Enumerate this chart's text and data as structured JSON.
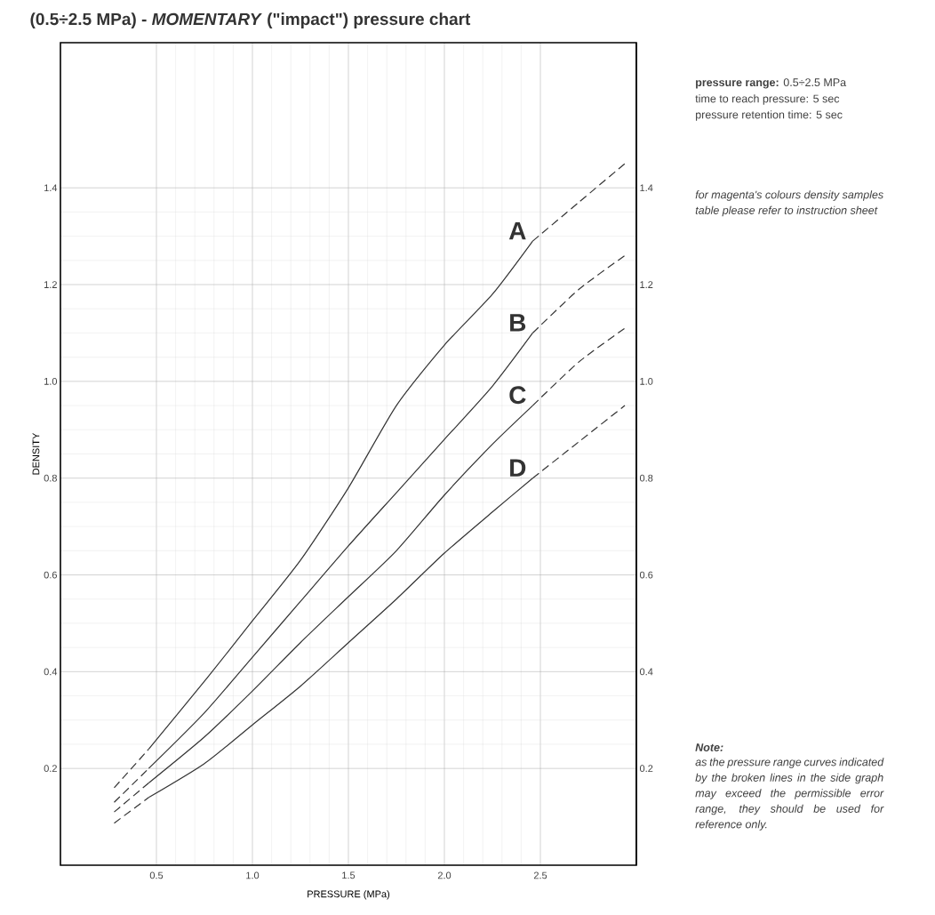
{
  "chart_data": {
    "type": "line",
    "title": "(0.5÷2.5 MPa) - *MOMENTARY* (\"impact\") pressure chart",
    "xlabel": "PRESSURE (MPa)",
    "ylabel": "DENSITY",
    "xlim": [
      0,
      3.0
    ],
    "ylim": [
      0,
      1.7
    ],
    "xticks": [
      0.5,
      {
        "value": 1.0,
        "label": "1.0"
      },
      1.5,
      {
        "value": 2.0,
        "label": "2.0"
      },
      2.5
    ],
    "yticks": [
      0.2,
      0.4,
      0.6,
      0.8,
      {
        "value": 1.0,
        "label": "1.0"
      },
      1.2,
      1.4
    ],
    "y2lim": [
      0,
      1.7
    ],
    "y2ticks": [
      0.2,
      0.4,
      0.6,
      0.8,
      {
        "value": 1.0,
        "label": "1.0"
      },
      1.2,
      1.4
    ],
    "grid": true,
    "series": [
      {
        "name": "A",
        "color": "#333333",
        "line_style": "solid",
        "x": [
          0.46,
          0.75,
          1.0,
          1.25,
          1.5,
          1.75,
          2.0,
          2.25,
          2.46
        ],
        "values": [
          0.24,
          0.38,
          0.505,
          0.63,
          0.78,
          0.95,
          1.075,
          1.18,
          1.29
        ]
      },
      {
        "color": "#333333",
        "line_style": "dashed",
        "x": [
          0.28,
          0.46
        ],
        "values": [
          0.16,
          0.24
        ]
      },
      {
        "color": "#333333",
        "line_style": "dashed",
        "x": [
          2.46,
          2.7,
          2.94
        ],
        "values": [
          1.29,
          1.37,
          1.45
        ]
      },
      {
        "name": "B",
        "color": "#333333",
        "line_style": "solid",
        "x": [
          0.46,
          0.75,
          1.0,
          1.25,
          1.5,
          1.75,
          2.0,
          2.25,
          2.46
        ],
        "values": [
          0.2,
          0.315,
          0.43,
          0.545,
          0.66,
          0.77,
          0.88,
          0.99,
          1.1
        ]
      },
      {
        "color": "#333333",
        "line_style": "dashed",
        "x": [
          0.28,
          0.46
        ],
        "values": [
          0.13,
          0.2
        ]
      },
      {
        "color": "#333333",
        "line_style": "dashed",
        "x": [
          2.46,
          2.7,
          2.94
        ],
        "values": [
          1.1,
          1.19,
          1.26
        ]
      },
      {
        "name": "C",
        "color": "#333333",
        "line_style": "solid",
        "x": [
          0.46,
          0.75,
          1.0,
          1.25,
          1.5,
          1.75,
          2.0,
          2.25,
          2.46
        ],
        "values": [
          0.17,
          0.265,
          0.36,
          0.46,
          0.555,
          0.65,
          0.765,
          0.87,
          0.95
        ]
      },
      {
        "color": "#333333",
        "line_style": "dashed",
        "x": [
          0.28,
          0.46
        ],
        "values": [
          0.11,
          0.17
        ]
      },
      {
        "color": "#333333",
        "line_style": "dashed",
        "x": [
          2.46,
          2.7,
          2.94
        ],
        "values": [
          0.95,
          1.04,
          1.11
        ]
      },
      {
        "name": "D",
        "color": "#333333",
        "line_style": "solid",
        "x": [
          0.46,
          0.75,
          1.0,
          1.25,
          1.5,
          1.75,
          2.0,
          2.25,
          2.46
        ],
        "values": [
          0.14,
          0.21,
          0.29,
          0.37,
          0.46,
          0.55,
          0.645,
          0.73,
          0.8
        ]
      },
      {
        "color": "#333333",
        "line_style": "dashed",
        "x": [
          0.28,
          0.46
        ],
        "values": [
          0.087,
          0.14
        ]
      },
      {
        "color": "#333333",
        "line_style": "dashed",
        "x": [
          2.46,
          2.7,
          2.94
        ],
        "values": [
          0.8,
          0.875,
          0.95
        ]
      }
    ],
    "annotations": [
      "**pressure range:** 0.5÷2.5 MPa",
      "time to reach pressure: 5 sec",
      "pressure retention time: 5 sec",
      "for magenta's colours density samples table please refer to instruction sheet",
      "Note:",
      "as the pressure range curves indicated by the broken lines in the side graph may exceed the permissible error range, they should be used for reference only."
    ]
  }
}
